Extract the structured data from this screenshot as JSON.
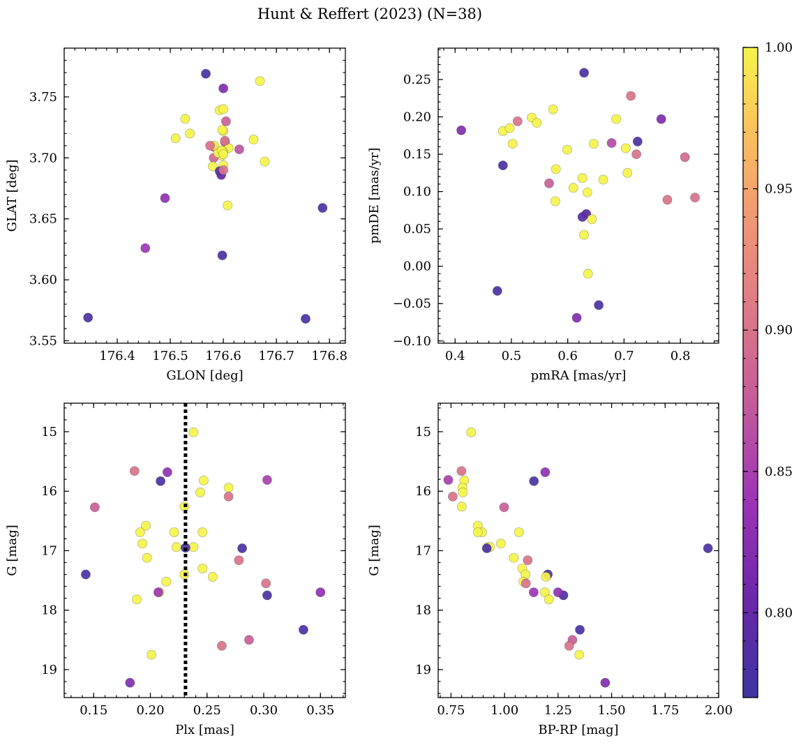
{
  "figure": {
    "title": "Hunt & Reffert (2023) (N=38)"
  },
  "colorbar": {
    "cmap": "plasma-like",
    "min": 0.77,
    "max": 1.0,
    "ticks": [
      0.8,
      0.85,
      0.9,
      0.95,
      1.0
    ],
    "tick_labels": [
      "0.80",
      "0.85",
      "0.90",
      "0.95",
      "1.00"
    ]
  },
  "chart_data": [
    {
      "type": "scatter",
      "xlabel": "GLON [deg]",
      "ylabel": "GLAT [deg]",
      "xlim": [
        176.3,
        176.83
      ],
      "ylim": [
        3.548,
        3.79
      ],
      "xticks": [
        176.4,
        176.5,
        176.6,
        176.7,
        176.8
      ],
      "xtick_labels": [
        "176.4",
        "176.5",
        "176.6",
        "176.7",
        "176.8"
      ],
      "yticks": [
        3.55,
        3.6,
        3.65,
        3.7,
        3.75
      ],
      "ytick_labels": [
        "3.55",
        "3.60",
        "3.65",
        "3.70",
        "3.75"
      ],
      "x": [
        176.567,
        176.6,
        176.669,
        176.528,
        176.593,
        176.6,
        176.605,
        176.537,
        176.51,
        176.657,
        176.6,
        176.598,
        176.603,
        176.582,
        176.61,
        176.63,
        176.582,
        176.597,
        176.678,
        176.6,
        176.58,
        176.593,
        176.596,
        176.6,
        176.608,
        176.49,
        176.453,
        176.598,
        176.787,
        176.345,
        176.755,
        176.6,
        176.583,
        176.575,
        176.59,
        176.597,
        176.6,
        176.603
      ],
      "y": [
        3.769,
        3.757,
        3.763,
        3.732,
        3.739,
        3.74,
        3.73,
        3.72,
        3.716,
        3.715,
        3.722,
        3.723,
        3.713,
        3.709,
        3.708,
        3.707,
        3.7,
        3.702,
        3.697,
        3.694,
        3.693,
        3.689,
        3.686,
        3.69,
        3.661,
        3.667,
        3.626,
        3.62,
        3.659,
        3.569,
        3.568,
        3.705,
        3.71,
        3.71,
        3.704,
        3.706,
        3.703,
        3.714
      ],
      "color": [
        0.78,
        0.82,
        1.0,
        1.0,
        1.0,
        1.0,
        0.88,
        1.0,
        1.0,
        1.0,
        1.0,
        1.0,
        0.89,
        0.89,
        1.0,
        0.87,
        0.89,
        1.0,
        1.0,
        1.0,
        1.0,
        0.79,
        0.8,
        0.9,
        1.0,
        0.83,
        0.84,
        0.78,
        0.78,
        0.78,
        0.78,
        1.0,
        1.0,
        0.9,
        1.0,
        1.0,
        1.0,
        0.9
      ]
    },
    {
      "type": "scatter",
      "xlabel": "pmRA [mas/yr]",
      "ylabel": "pmDE [mas/yr]",
      "xlim": [
        0.37,
        0.868
      ],
      "ylim": [
        -0.103,
        0.292
      ],
      "xticks": [
        0.4,
        0.5,
        0.6,
        0.7,
        0.8
      ],
      "xtick_labels": [
        "0.4",
        "0.5",
        "0.6",
        "0.7",
        "0.8"
      ],
      "yticks": [
        -0.1,
        -0.05,
        0.0,
        0.05,
        0.1,
        0.15,
        0.2,
        0.25
      ],
      "ytick_labels": [
        "−0.10",
        "−0.05",
        "0.00",
        "0.05",
        "0.10",
        "0.15",
        "0.20",
        "0.25"
      ],
      "x": [
        0.629,
        0.712,
        0.574,
        0.536,
        0.545,
        0.766,
        0.686,
        0.724,
        0.411,
        0.485,
        0.497,
        0.511,
        0.678,
        0.502,
        0.646,
        0.703,
        0.722,
        0.599,
        0.485,
        0.579,
        0.626,
        0.706,
        0.61,
        0.567,
        0.635,
        0.663,
        0.808,
        0.578,
        0.826,
        0.777,
        0.633,
        0.626,
        0.643,
        0.629,
        0.636,
        0.475,
        0.655,
        0.616
      ],
      "y": [
        0.259,
        0.228,
        0.21,
        0.199,
        0.192,
        0.197,
        0.197,
        0.167,
        0.182,
        0.181,
        0.185,
        0.194,
        0.165,
        0.164,
        0.164,
        0.158,
        0.15,
        0.156,
        0.135,
        0.13,
        0.118,
        0.125,
        0.105,
        0.111,
        0.099,
        0.116,
        0.146,
        0.087,
        0.092,
        0.089,
        0.07,
        0.066,
        0.063,
        0.042,
        -0.01,
        -0.033,
        -0.052,
        -0.069
      ],
      "color": [
        0.78,
        0.9,
        1.0,
        1.0,
        1.0,
        0.82,
        1.0,
        0.78,
        0.82,
        1.0,
        1.0,
        0.9,
        0.86,
        1.0,
        1.0,
        1.0,
        0.9,
        1.0,
        0.78,
        1.0,
        1.0,
        1.0,
        1.0,
        0.88,
        1.0,
        1.0,
        0.89,
        1.0,
        0.9,
        0.9,
        0.79,
        0.79,
        1.0,
        1.0,
        1.0,
        0.78,
        0.78,
        0.82
      ]
    },
    {
      "type": "scatter",
      "xlabel": "Plx [mas]",
      "ylabel": "G [mag]",
      "xlim": [
        0.124,
        0.372
      ],
      "ylim": [
        19.47,
        14.52
      ],
      "y_inverted": true,
      "xticks": [
        0.15,
        0.2,
        0.25,
        0.3,
        0.35
      ],
      "xtick_labels": [
        "0.15",
        "0.20",
        "0.25",
        "0.30",
        "0.35"
      ],
      "yticks": [
        15,
        16,
        17,
        18,
        19
      ],
      "ytick_labels": [
        "15",
        "16",
        "17",
        "18",
        "19"
      ],
      "vline": {
        "x": 0.231,
        "style": "dotted"
      },
      "x": [
        0.238,
        0.186,
        0.215,
        0.209,
        0.303,
        0.247,
        0.269,
        0.244,
        0.269,
        0.151,
        0.23,
        0.196,
        0.191,
        0.221,
        0.246,
        0.193,
        0.223,
        0.238,
        0.231,
        0.281,
        0.197,
        0.246,
        0.278,
        0.143,
        0.255,
        0.23,
        0.214,
        0.208,
        0.207,
        0.302,
        0.303,
        0.35,
        0.188,
        0.335,
        0.287,
        0.263,
        0.201,
        0.182
      ],
      "y": [
        15.01,
        15.66,
        15.68,
        15.83,
        15.81,
        15.82,
        15.94,
        16.02,
        16.09,
        16.27,
        16.26,
        16.58,
        16.69,
        16.69,
        16.69,
        16.88,
        16.94,
        16.94,
        16.95,
        16.96,
        17.12,
        17.3,
        17.16,
        17.4,
        17.44,
        17.4,
        17.52,
        17.7,
        17.7,
        17.55,
        17.75,
        17.7,
        17.82,
        18.33,
        18.5,
        18.6,
        18.75,
        19.22
      ],
      "color": [
        1.0,
        0.9,
        0.83,
        0.78,
        0.85,
        1.0,
        1.0,
        1.0,
        0.9,
        0.88,
        1.0,
        1.0,
        1.0,
        1.0,
        1.0,
        1.0,
        1.0,
        1.0,
        0.78,
        0.78,
        1.0,
        1.0,
        0.9,
        0.78,
        1.0,
        1.0,
        1.0,
        1.0,
        0.84,
        0.9,
        0.78,
        0.83,
        1.0,
        0.78,
        0.88,
        0.9,
        1.0,
        0.82
      ]
    },
    {
      "type": "scatter",
      "xlabel": "BP-RP [mag]",
      "ylabel": "G [mag]",
      "xlim": [
        0.69,
        2.0
      ],
      "ylim": [
        19.47,
        14.52
      ],
      "y_inverted": true,
      "xticks": [
        0.75,
        1.0,
        1.25,
        1.5,
        1.75,
        2.0
      ],
      "xtick_labels": [
        "0.75",
        "1.00",
        "1.25",
        "1.50",
        "1.75",
        "2.00"
      ],
      "yticks": [
        15,
        16,
        17,
        18,
        19
      ],
      "ytick_labels": [
        "15",
        "16",
        "17",
        "18",
        "19"
      ],
      "x": [
        0.844,
        0.799,
        1.19,
        0.737,
        1.137,
        0.812,
        0.803,
        0.805,
        0.758,
        0.998,
        0.8,
        0.875,
        0.895,
        1.067,
        0.875,
        0.983,
        0.922,
        0.932,
        0.917,
        1.95,
        1.043,
        1.083,
        1.108,
        1.202,
        1.193,
        1.098,
        1.088,
        1.188,
        1.136,
        1.275,
        1.25,
        1.207,
        1.352,
        1.317,
        1.302,
        1.349,
        1.47,
        1.1
      ],
      "y": [
        15.01,
        15.66,
        15.68,
        15.81,
        15.83,
        15.82,
        15.94,
        16.02,
        16.09,
        16.27,
        16.26,
        16.58,
        16.69,
        16.69,
        16.69,
        16.88,
        16.94,
        16.94,
        16.96,
        16.96,
        17.12,
        17.3,
        17.16,
        17.4,
        17.44,
        17.4,
        17.52,
        17.7,
        17.7,
        17.75,
        17.7,
        17.82,
        18.33,
        18.5,
        18.6,
        18.75,
        19.22,
        17.55
      ],
      "color": [
        1.0,
        0.9,
        0.83,
        0.85,
        0.78,
        1.0,
        1.0,
        1.0,
        0.9,
        0.88,
        1.0,
        1.0,
        1.0,
        1.0,
        1.0,
        1.0,
        1.0,
        1.0,
        0.78,
        0.78,
        1.0,
        1.0,
        0.9,
        0.78,
        1.0,
        1.0,
        1.0,
        1.0,
        0.84,
        0.78,
        0.83,
        1.0,
        0.78,
        0.88,
        0.9,
        1.0,
        0.82,
        0.9
      ]
    }
  ]
}
